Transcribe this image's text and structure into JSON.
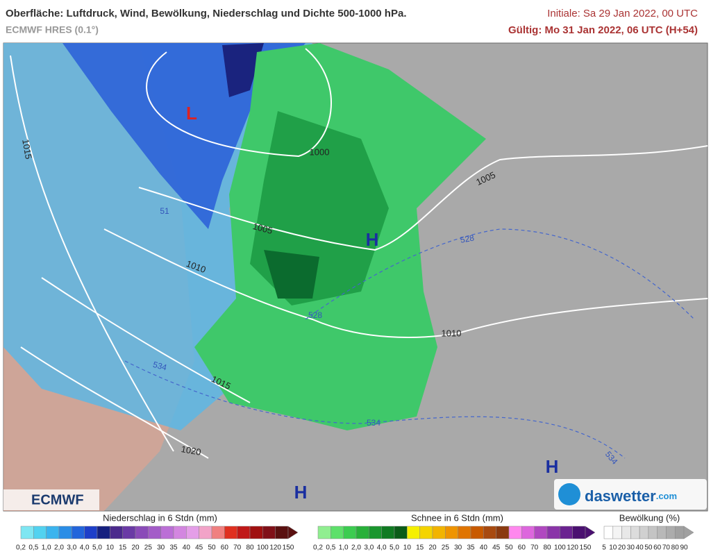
{
  "header": {
    "title": "Oberfläche: Luftdruck, Wind, Bewölkung, Niederschlag und Dichte 500-1000 hPa.",
    "model": "ECMWF HRES (0.1°)",
    "initial": "Initiale: Sa 29 Jan 2022, 00 UTC",
    "valid": "Gültig: Mo 31 Jan 2022, 06 UTC (H+54)"
  },
  "map": {
    "pressure_centers": [
      "L",
      "H",
      "H",
      "H"
    ],
    "isobar_labels": [
      "1015",
      "1000",
      "1005",
      "1005",
      "1010",
      "1010",
      "1015",
      "1020"
    ],
    "thickness_labels": [
      "528",
      "528",
      "534",
      "534",
      "534",
      "51"
    ]
  },
  "logos": {
    "left": "ECMWF",
    "right": "daswetter",
    "right_suffix": ".com"
  },
  "legends": [
    {
      "title": "Niederschlag in 6 Stdn (mm)",
      "ticks": [
        "0,2",
        "0,5",
        "1,0",
        "2,0",
        "3,0",
        "4,0",
        "5,0",
        "10",
        "15",
        "20",
        "25",
        "30",
        "35",
        "40",
        "45",
        "50",
        "60",
        "70",
        "80",
        "100",
        "120",
        "150"
      ]
    },
    {
      "title": "Schnee in 6 Stdn (mm)",
      "ticks": [
        "0,2",
        "0,5",
        "1,0",
        "2,0",
        "3,0",
        "4,0",
        "5,0",
        "10",
        "15",
        "20",
        "25",
        "30",
        "35",
        "40",
        "45",
        "50",
        "60",
        "70",
        "80",
        "100",
        "120",
        "150"
      ]
    },
    {
      "title": "Bewölkung (%)",
      "ticks": [
        "5",
        "10",
        "20",
        "30",
        "40",
        "50",
        "60",
        "70",
        "80",
        "90"
      ]
    }
  ]
}
